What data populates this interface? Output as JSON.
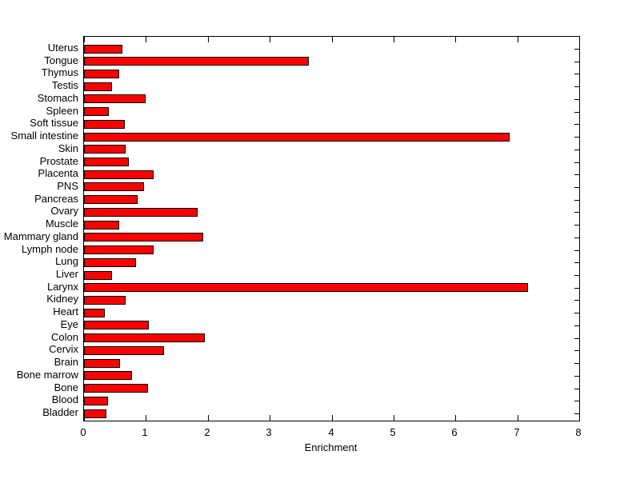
{
  "figure": {
    "background_color": "#FFFFFF"
  },
  "chart_data": {
    "type": "bar",
    "orientation": "horizontal",
    "title": "",
    "xlabel": "Enrichment",
    "ylabel": "",
    "xlim": [
      0,
      8
    ],
    "x_ticks": [
      0,
      1,
      2,
      3,
      4,
      5,
      6,
      7,
      8
    ],
    "grid": false,
    "legend": "none",
    "bar_color": "#FF0000",
    "bar_edge_color": "#000000",
    "axis_color": "#000000",
    "category_order": "top-to-bottom",
    "categories": [
      "Uterus",
      "Tongue",
      "Thymus",
      "Testis",
      "Stomach",
      "Spleen",
      "Soft tissue",
      "Small intestine",
      "Skin",
      "Prostate",
      "Placenta",
      "PNS",
      "Pancreas",
      "Ovary",
      "Muscle",
      "Mammary gland",
      "Lymph node",
      "Lung",
      "Liver",
      "Larynx",
      "Kidney",
      "Heart",
      "Eye",
      "Colon",
      "Cervix",
      "Brain",
      "Bone marrow",
      "Bone",
      "Blood",
      "Bladder"
    ],
    "values": [
      0.62,
      3.63,
      0.57,
      0.45,
      1.0,
      0.4,
      0.66,
      6.87,
      0.67,
      0.73,
      1.12,
      0.97,
      0.86,
      1.83,
      0.57,
      1.93,
      1.13,
      0.84,
      0.45,
      7.17,
      0.67,
      0.34,
      1.05,
      1.95,
      1.29,
      0.58,
      0.78,
      1.04,
      0.39,
      0.36
    ]
  }
}
